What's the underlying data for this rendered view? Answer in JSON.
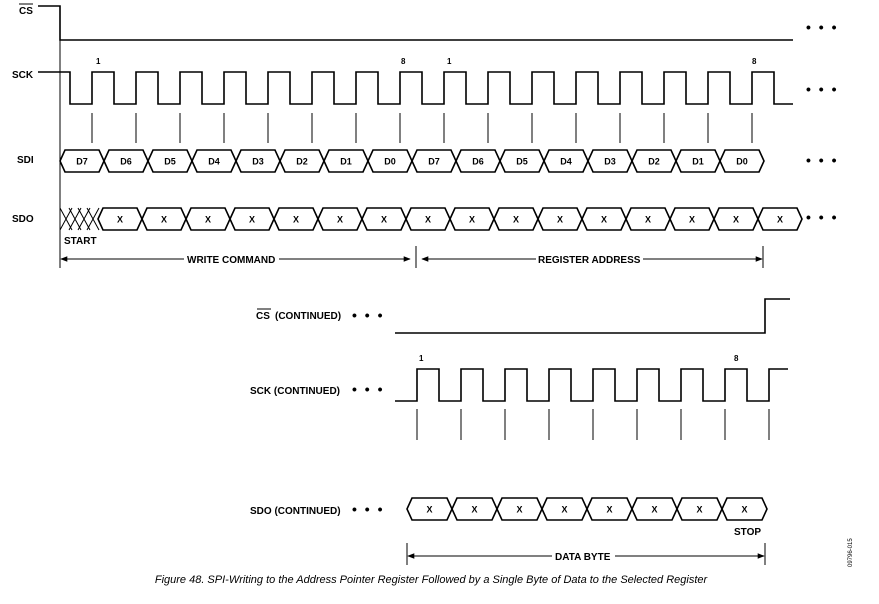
{
  "signals": {
    "cs": "CS",
    "sck": "SCK",
    "sdi": "SDI",
    "sdo": "SDO",
    "cs_continued_cs": "CS",
    "cs_continued_suffix": "(CONTINUED)",
    "sck_continued": "SCK (CONTINUED)",
    "sdo_continued": "SDO (CONTINUED)"
  },
  "continuation_marker": "• • •",
  "clock_marks": {
    "first": "1",
    "last": "8"
  },
  "sdi_bits": [
    "D7",
    "D6",
    "D5",
    "D4",
    "D3",
    "D2",
    "D1",
    "D0",
    "D7",
    "D6",
    "D5",
    "D4",
    "D3",
    "D2",
    "D1",
    "D0"
  ],
  "sdo_bit": "X",
  "annotations": {
    "start": "START",
    "stop": "STOP",
    "write_command": "WRITE COMMAND",
    "register_address": "REGISTER ADDRESS",
    "data_byte": "DATA BYTE"
  },
  "caption": "Figure 48. SPI-Writing to the Address Pointer Register Followed by a Single Byte of Data to the Selected Register",
  "figure_id": "09796-015"
}
